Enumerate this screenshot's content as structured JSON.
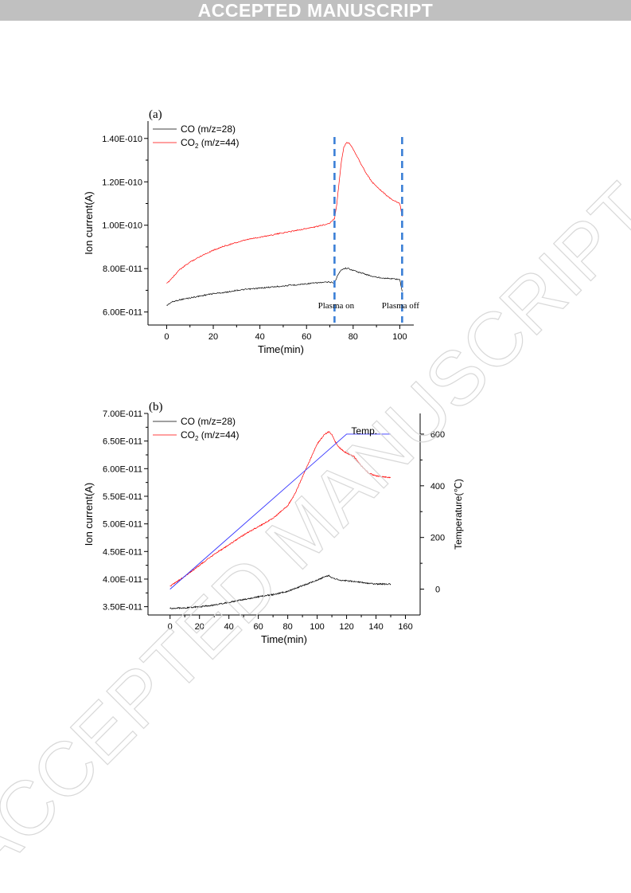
{
  "header": {
    "banner": "ACCEPTED MANUSCRIPT"
  },
  "watermark": {
    "text": "ACCEPTED MANUSCRIPT"
  },
  "colors": {
    "co": "#000000",
    "co2": "#ff0000",
    "temp": "#3333ff",
    "marker": "#3b7fd6"
  },
  "chart_data": [
    {
      "type": "line",
      "panel_label": "(a)",
      "xlabel": "Time(min)",
      "ylabel": "Ion current(A)",
      "xlim": [
        -8,
        106
      ],
      "ylim": [
        5.4e-11,
        1.48e-10
      ],
      "x_ticks": [
        0,
        20,
        40,
        60,
        80,
        100
      ],
      "y_ticks": [
        6e-11,
        8e-11,
        1e-10,
        1.2e-10,
        1.4e-10
      ],
      "y_tick_labels": [
        "6.00E-011",
        "8.00E-011",
        "1.00E-010",
        "1.20E-010",
        "1.40E-010"
      ],
      "legend": {
        "position": "top-left",
        "entries": [
          {
            "text": "CO (m/z=28)",
            "color": "#000000"
          },
          {
            "text": "CO",
            "sub": "2",
            "suffix": " (m/z=44)",
            "color": "#ff0000"
          }
        ]
      },
      "series": [
        {
          "name": "CO (m/z=28)",
          "color": "#000000",
          "x": [
            0,
            2,
            5,
            10,
            15,
            20,
            25,
            30,
            35,
            40,
            45,
            50,
            55,
            60,
            65,
            70,
            72,
            73,
            74,
            75,
            76,
            77,
            78,
            80,
            82,
            85,
            88,
            90,
            95,
            100,
            101
          ],
          "y": [
            6.3e-11,
            6.45e-11,
            6.55e-11,
            6.65e-11,
            6.75e-11,
            6.85e-11,
            6.9e-11,
            7e-11,
            7.05e-11,
            7.1e-11,
            7.15e-11,
            7.2e-11,
            7.25e-11,
            7.3e-11,
            7.35e-11,
            7.38e-11,
            7.35e-11,
            7.6e-11,
            7.8e-11,
            7.95e-11,
            8e-11,
            8.02e-11,
            8e-11,
            7.92e-11,
            7.85e-11,
            7.75e-11,
            7.65e-11,
            7.6e-11,
            7.55e-11,
            7.5e-11,
            6.95e-11
          ]
        },
        {
          "name": "CO2 (m/z=44)",
          "color": "#ff0000",
          "x": [
            0,
            3,
            5,
            10,
            15,
            20,
            25,
            30,
            35,
            40,
            45,
            50,
            55,
            60,
            65,
            70,
            72,
            73,
            74,
            75,
            76,
            77,
            78,
            79,
            80,
            82,
            85,
            88,
            90,
            93,
            95,
            98,
            100,
            101
          ],
          "y": [
            7.3e-11,
            7.65e-11,
            7.9e-11,
            8.3e-11,
            8.6e-11,
            8.85e-11,
            9.05e-11,
            9.2e-11,
            9.35e-11,
            9.45e-11,
            9.55e-11,
            9.65e-11,
            9.75e-11,
            9.85e-11,
            9.95e-11,
            1.01e-10,
            1.03e-10,
            1.1e-10,
            1.2e-10,
            1.3e-10,
            1.36e-10,
            1.38e-10,
            1.38e-10,
            1.37e-10,
            1.35e-10,
            1.31e-10,
            1.25e-10,
            1.2e-10,
            1.18e-10,
            1.15e-10,
            1.13e-10,
            1.11e-10,
            1.1e-10,
            1.04e-10
          ]
        }
      ],
      "markers": [
        {
          "x": 72,
          "label": "Plasma on"
        },
        {
          "x": 101,
          "label": "Plasma off"
        }
      ]
    },
    {
      "type": "line",
      "panel_label": "(b)",
      "xlabel": "Time(min)",
      "ylabel": "Ion current(A)",
      "y2label": "Temperature(℃)",
      "xlim": [
        -15,
        170
      ],
      "ylim": [
        3.35e-11,
        7e-11
      ],
      "y2lim": [
        -100,
        680
      ],
      "x_ticks": [
        0,
        20,
        40,
        60,
        80,
        100,
        120,
        140,
        160
      ],
      "y_ticks": [
        3.5e-11,
        4e-11,
        4.5e-11,
        5e-11,
        5.5e-11,
        6e-11,
        6.5e-11,
        7e-11
      ],
      "y_tick_labels": [
        "3.50E-011",
        "4.00E-011",
        "4.50E-011",
        "5.00E-011",
        "5.50E-011",
        "6.00E-011",
        "6.50E-011",
        "7.00E-011"
      ],
      "y2_ticks": [
        0,
        200,
        400,
        600
      ],
      "legend": {
        "position": "top-left",
        "entries": [
          {
            "text": "CO (m/z=28)",
            "color": "#000000"
          },
          {
            "text": "CO",
            "sub": "2",
            "suffix": " (m/z=44)",
            "color": "#ff0000"
          }
        ]
      },
      "series_label": "Temp.",
      "series": [
        {
          "name": "CO (m/z=28)",
          "color": "#000000",
          "x": [
            0,
            10,
            20,
            30,
            40,
            50,
            60,
            70,
            80,
            90,
            100,
            105,
            108,
            110,
            115,
            120,
            130,
            140,
            150
          ],
          "y": [
            3.47e-11,
            3.48e-11,
            3.5e-11,
            3.53e-11,
            3.58e-11,
            3.63e-11,
            3.68e-11,
            3.72e-11,
            3.78e-11,
            3.88e-11,
            3.98e-11,
            4.04e-11,
            4.06e-11,
            4.03e-11,
            3.98e-11,
            3.97e-11,
            3.94e-11,
            3.91e-11,
            3.91e-11
          ]
        },
        {
          "name": "CO2 (m/z=44)",
          "color": "#ff0000",
          "x": [
            0,
            10,
            20,
            30,
            40,
            50,
            60,
            70,
            80,
            85,
            90,
            95,
            100,
            105,
            108,
            110,
            112,
            115,
            120,
            125,
            130,
            135,
            140,
            145,
            150
          ],
          "y": [
            3.87e-11,
            4.05e-11,
            4.25e-11,
            4.45e-11,
            4.62e-11,
            4.8e-11,
            4.95e-11,
            5.1e-11,
            5.33e-11,
            5.55e-11,
            5.85e-11,
            6.15e-11,
            6.45e-11,
            6.62e-11,
            6.67e-11,
            6.62e-11,
            6.5e-11,
            6.38e-11,
            6.28e-11,
            6.22e-11,
            6.05e-11,
            5.92e-11,
            5.87e-11,
            5.85e-11,
            5.84e-11
          ]
        },
        {
          "name": "Temp.",
          "color": "#3333ff",
          "axis": "right",
          "x": [
            0,
            120,
            150
          ],
          "y": [
            0,
            600,
            600
          ]
        }
      ]
    }
  ]
}
